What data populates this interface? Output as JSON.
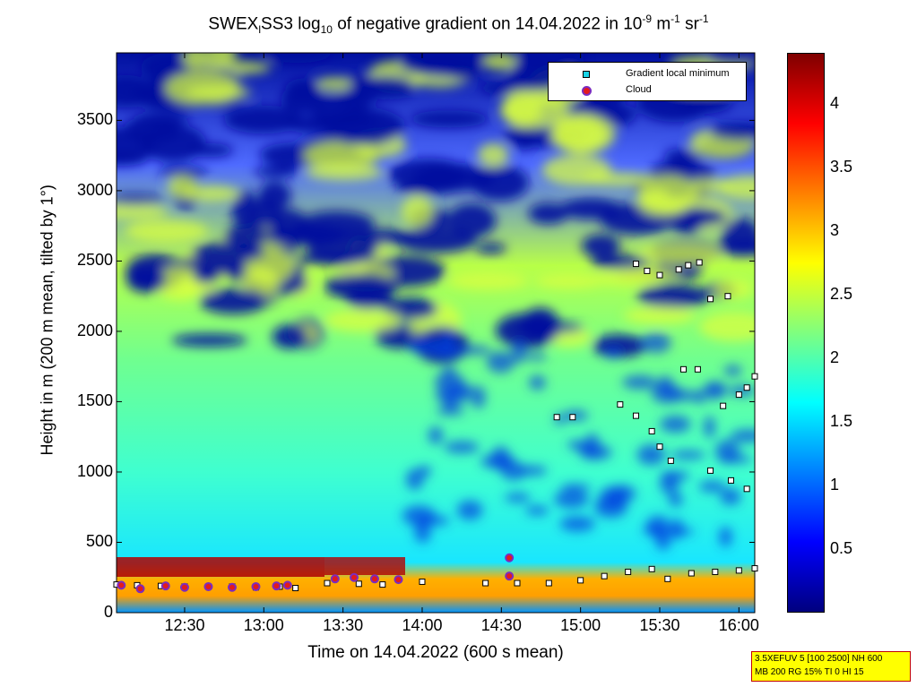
{
  "title": {
    "main": "SWEX",
    "sub1": "l",
    "mid": "SS3 log",
    "sub2": "10",
    "rest": " of negative gradient on 14.04.2022 in 10",
    "sup1": "-9",
    "unit1": " m",
    "sup2": "-1",
    "unit2": " sr",
    "sup3": "-1"
  },
  "legend": {
    "gradient_label": "Gradient local minimum",
    "cloud_label": "Cloud"
  },
  "info_box": {
    "line1": "3.5XEFUV 5 [100 2500] NH 600",
    "line2": "MB 200 RG 15% TI 0 HI 15"
  },
  "colors": {
    "gradient_marker": "#19d4e6",
    "cloud_marker_fill": "#e31a1c",
    "cloud_marker_edge": "#7b2cbf",
    "low_value": "#00007f",
    "high_value": "#7f0000"
  },
  "chart_data": {
    "type": "heatmap",
    "title": "SWEX_lSS3 log10 of negative gradient on 14.04.2022 in 10^-9 m^-1 sr^-1",
    "xlabel": "Time on 14.04.2022 (600 s mean)",
    "ylabel": "Height in m (200 m mean, tilted by 1°)",
    "x_ticks": [
      "12:30",
      "13:00",
      "13:30",
      "14:00",
      "14:30",
      "15:00",
      "15:30",
      "16:00"
    ],
    "x_tick_hours": [
      12.5,
      13.0,
      13.5,
      14.0,
      14.5,
      15.0,
      15.5,
      16.0
    ],
    "xlim_hours": [
      12.07,
      16.1
    ],
    "y_ticks": [
      "0",
      "500",
      "1000",
      "1500",
      "2000",
      "2500",
      "3000",
      "3500"
    ],
    "y_tick_values": [
      0,
      500,
      1000,
      1500,
      2000,
      2500,
      3000,
      3500
    ],
    "ylim": [
      0,
      3980
    ],
    "colorbar": {
      "ticks": [
        "0.5",
        "1",
        "1.5",
        "2",
        "2.5",
        "3",
        "3.5",
        "4"
      ],
      "tick_values": [
        0.5,
        1,
        1.5,
        2,
        2.5,
        3,
        3.5,
        4
      ],
      "range": [
        0,
        4.4
      ],
      "colormap": "jet"
    },
    "legend_position": "top-right",
    "series": [
      {
        "name": "Gradient local minimum",
        "marker": "square",
        "points": [
          [
            12.07,
            200
          ],
          [
            12.2,
            195
          ],
          [
            12.35,
            190
          ],
          [
            12.5,
            185
          ],
          [
            12.65,
            185
          ],
          [
            12.8,
            185
          ],
          [
            12.95,
            180
          ],
          [
            13.1,
            185
          ],
          [
            13.2,
            175
          ],
          [
            13.4,
            210
          ],
          [
            13.6,
            205
          ],
          [
            13.75,
            200
          ],
          [
            14.0,
            220
          ],
          [
            14.4,
            210
          ],
          [
            14.6,
            210
          ],
          [
            14.8,
            210
          ],
          [
            15.0,
            230
          ],
          [
            15.15,
            260
          ],
          [
            15.3,
            290
          ],
          [
            15.45,
            310
          ],
          [
            15.55,
            240
          ],
          [
            15.7,
            280
          ],
          [
            15.85,
            290
          ],
          [
            16.0,
            300
          ],
          [
            16.1,
            315
          ],
          [
            14.85,
            1390
          ],
          [
            14.95,
            1390
          ],
          [
            15.25,
            1480
          ],
          [
            15.35,
            1400
          ],
          [
            15.45,
            1290
          ],
          [
            15.5,
            1180
          ],
          [
            15.57,
            1080
          ],
          [
            15.82,
            1010
          ],
          [
            15.95,
            940
          ],
          [
            16.05,
            880
          ],
          [
            15.9,
            1470
          ],
          [
            16.0,
            1550
          ],
          [
            16.05,
            1600
          ],
          [
            16.1,
            1680
          ],
          [
            15.35,
            2480
          ],
          [
            15.42,
            2430
          ],
          [
            15.5,
            2400
          ],
          [
            15.62,
            2440
          ],
          [
            15.68,
            2470
          ],
          [
            15.75,
            2490
          ],
          [
            15.82,
            2230
          ],
          [
            15.93,
            2250
          ],
          [
            15.74,
            1730
          ],
          [
            15.65,
            1730
          ]
        ]
      },
      {
        "name": "Cloud",
        "marker": "circle",
        "points": [
          [
            12.1,
            195
          ],
          [
            12.22,
            170
          ],
          [
            12.38,
            190
          ],
          [
            12.5,
            180
          ],
          [
            12.65,
            185
          ],
          [
            12.8,
            180
          ],
          [
            12.95,
            185
          ],
          [
            13.08,
            190
          ],
          [
            13.15,
            195
          ],
          [
            13.45,
            240
          ],
          [
            13.57,
            250
          ],
          [
            13.7,
            240
          ],
          [
            13.85,
            235
          ],
          [
            14.55,
            390
          ],
          [
            14.55,
            260
          ]
        ]
      }
    ]
  }
}
